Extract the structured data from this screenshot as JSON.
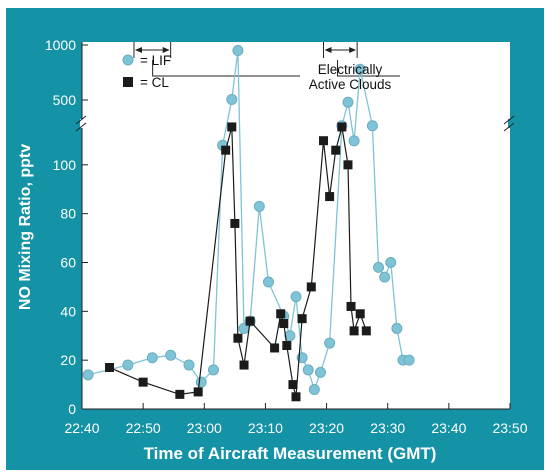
{
  "chart_data": {
    "type": "scatter",
    "title": "",
    "xlabel": "Time of Aircraft Measurement (GMT)",
    "ylabel": "NO Mixing Ratio, pptv",
    "x_unit": "minutes after 22:40 GMT",
    "xlim": [
      0,
      70
    ],
    "x_ticks": [
      "22:40",
      "22:50",
      "23:00",
      "23:10",
      "23:20",
      "23:30",
      "23:40",
      "23:50"
    ],
    "y_scale": "broken",
    "y_break_after": 120,
    "y_ticks_lower": [
      0,
      20,
      40,
      60,
      80,
      100
    ],
    "y_ticks_upper": [
      500,
      1000
    ],
    "ylim": [
      0,
      1000
    ],
    "grid": false,
    "legend": {
      "position": "top-left",
      "items": [
        {
          "label": "= LIF"
        },
        {
          "label": "= CL"
        }
      ]
    },
    "annotation": {
      "line1": "Electrically",
      "line2": "Active Clouds"
    },
    "active_cloud_periods": [
      [
        8.5,
        14.5
      ],
      [
        39.5,
        45.0
      ]
    ],
    "series": [
      {
        "name": "LIF",
        "marker": "circle",
        "color": "#7fc3d6",
        "x": [
          1,
          7.5,
          11.5,
          14.5,
          17.5,
          19.5,
          21.5,
          23,
          24.5,
          25.5,
          26.5,
          27.5,
          29,
          30.5,
          33,
          34,
          35,
          36,
          37,
          38,
          39,
          40.5,
          42.5,
          43.5,
          44.5,
          45.5,
          47.5,
          48.5,
          49.5,
          50.5,
          51.5,
          52.5,
          53.5
        ],
        "y": [
          14,
          18,
          21,
          22,
          18,
          11,
          16,
          108,
          505,
          950,
          33,
          36,
          83,
          52,
          38,
          30,
          46,
          21,
          16,
          8,
          15,
          27,
          116,
          480,
          128,
          780,
          116,
          58,
          54,
          60,
          33,
          20,
          20
        ]
      },
      {
        "name": "CL",
        "marker": "square",
        "color": "#1b1b1b",
        "x": [
          4.5,
          10,
          16,
          19,
          23.5,
          24.5,
          25,
          25.5,
          26.5,
          27.5,
          31.5,
          32.5,
          33,
          33.5,
          34.5,
          35,
          36,
          37.5,
          39.5,
          40.5,
          41.5,
          42.5,
          43.5,
          44,
          44.5,
          45.5,
          46.5
        ],
        "y": [
          17,
          11,
          6,
          7,
          106,
          255,
          76,
          29,
          18,
          36,
          25,
          39,
          35,
          26,
          10,
          5,
          37,
          50,
          130,
          87,
          106,
          255,
          100,
          42,
          32,
          39,
          32
        ]
      }
    ]
  }
}
